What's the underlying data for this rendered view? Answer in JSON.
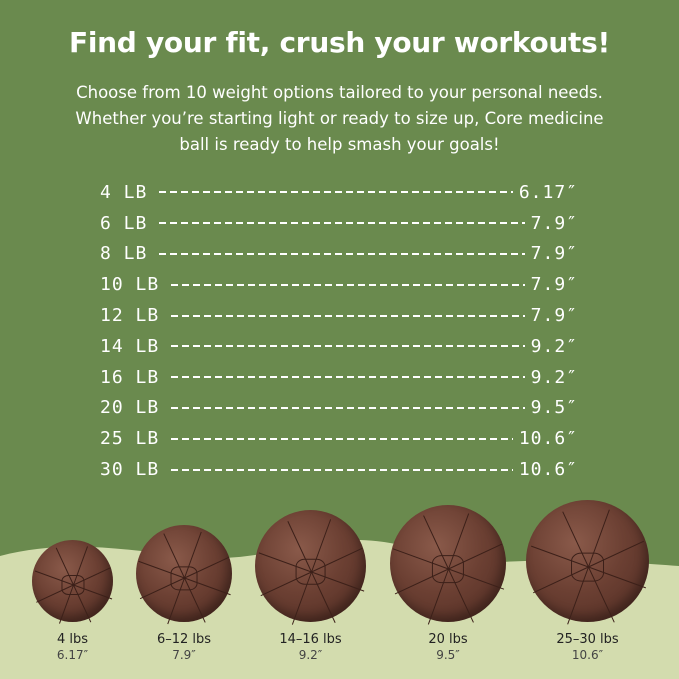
{
  "header": {
    "title": "Find your fit, crush your workouts!",
    "subtitle_lines": [
      "Choose from 10 weight options tailored to your personal needs.",
      "Whether you’re starting light or ready to size up, Core medicine",
      "ball is ready to help smash your goals!"
    ]
  },
  "size_table": [
    {
      "weight": "4 LB",
      "diameter": "6.17″"
    },
    {
      "weight": "6 LB",
      "diameter": "7.9″"
    },
    {
      "weight": "8 LB",
      "diameter": "7.9″"
    },
    {
      "weight": "10 LB",
      "diameter": "7.9″"
    },
    {
      "weight": "12 LB",
      "diameter": "7.9″"
    },
    {
      "weight": "14 LB",
      "diameter": "9.2″"
    },
    {
      "weight": "16 LB",
      "diameter": "9.2″"
    },
    {
      "weight": "20 LB",
      "diameter": "9.5″"
    },
    {
      "weight": "25 LB",
      "diameter": "10.6″"
    },
    {
      "weight": "30 LB",
      "diameter": "10.6″"
    }
  ],
  "balls": [
    {
      "weight": "4 lbs",
      "diameter": "6.17″"
    },
    {
      "weight": "6–12 lbs",
      "diameter": "7.9″"
    },
    {
      "weight": "14–16 lbs",
      "diameter": "9.2″"
    },
    {
      "weight": "20 lbs",
      "diameter": "9.5″"
    },
    {
      "weight": "25–30 lbs",
      "diameter": "10.6″"
    }
  ],
  "colors": {
    "background": "#6a8a4e",
    "wave": "#d3dcae",
    "ball": "#6c4033",
    "text": "#ffffff"
  }
}
